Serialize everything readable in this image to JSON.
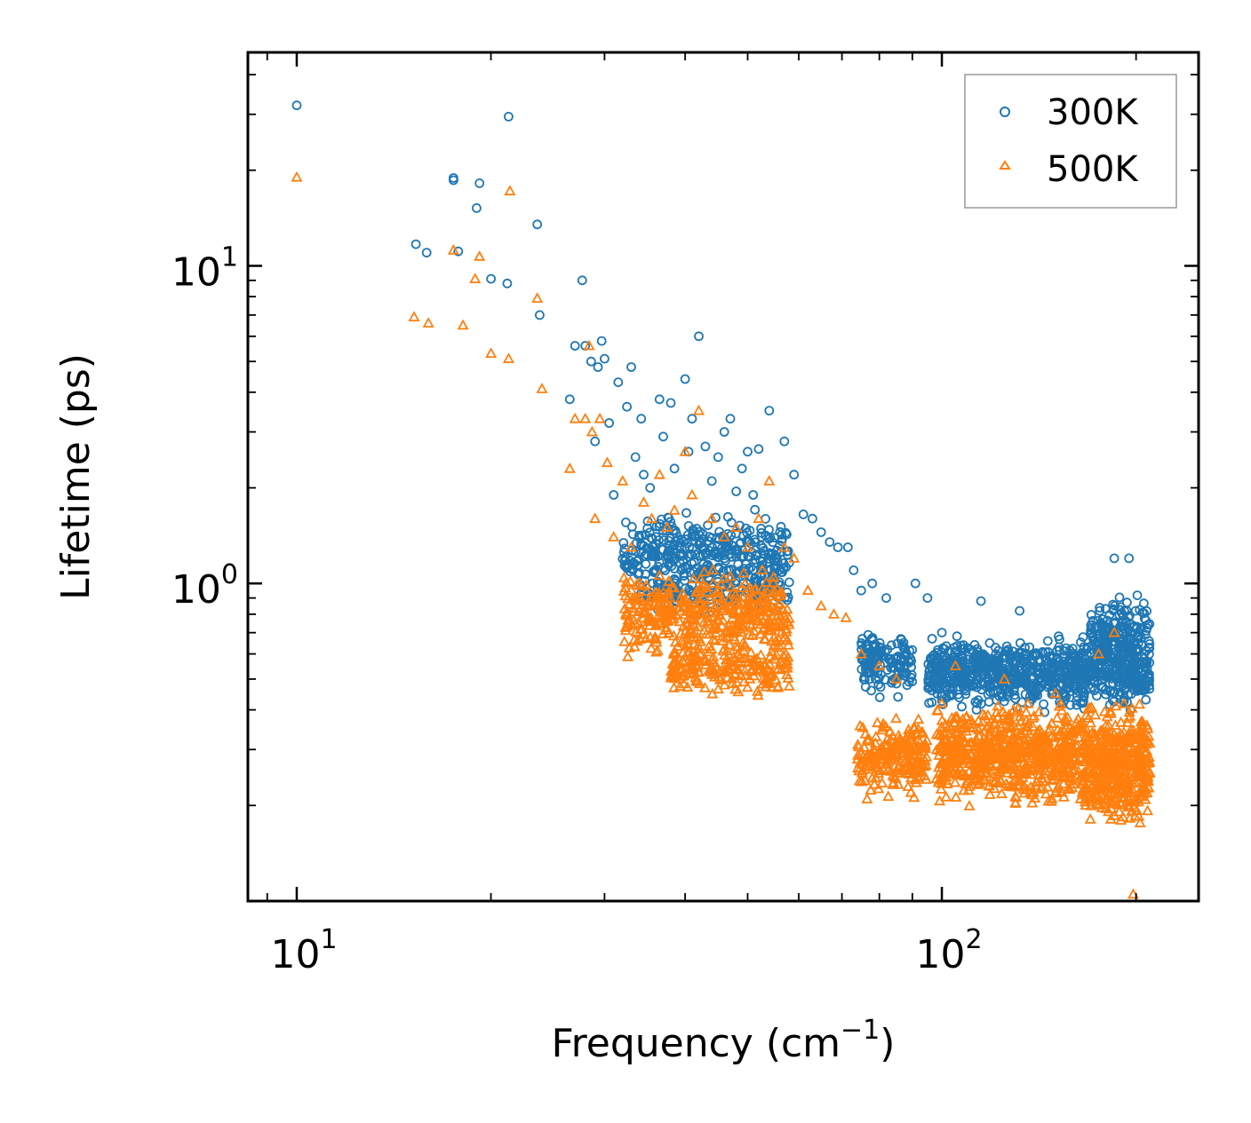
{
  "chart_data": {
    "type": "scatter",
    "title": "",
    "xlabel": "Frequency (cm",
    "xlabel_sup": "−1",
    "xlabel_suffix": ")",
    "ylabel": "Lifetime (ps)",
    "xscale": "log",
    "yscale": "log",
    "xlim": [
      8.4,
      250
    ],
    "ylim": [
      0.1,
      47
    ],
    "x_ticks": [
      {
        "base": "10",
        "exp": "1",
        "value": 10
      },
      {
        "base": "10",
        "exp": "2",
        "value": 100
      }
    ],
    "y_ticks": [
      {
        "base": "10",
        "exp": "0",
        "value": 1
      },
      {
        "base": "10",
        "exp": "1",
        "value": 10
      }
    ],
    "legend_position": "top-right",
    "series": [
      {
        "name": "300K",
        "marker": "circle",
        "color": "#1f77b4",
        "points": [
          [
            10.0,
            32.0
          ],
          [
            15.3,
            11.7
          ],
          [
            15.9,
            11.0
          ],
          [
            17.5,
            18.9
          ],
          [
            17.5,
            18.6
          ],
          [
            17.8,
            11.1
          ],
          [
            19.0,
            15.2
          ],
          [
            19.2,
            18.2
          ],
          [
            20.0,
            9.1
          ],
          [
            21.2,
            8.8
          ],
          [
            21.3,
            29.5
          ],
          [
            23.6,
            13.5
          ],
          [
            23.8,
            7.0
          ],
          [
            26.5,
            3.8
          ],
          [
            27.0,
            5.6
          ],
          [
            27.7,
            9.0
          ],
          [
            28.0,
            5.6
          ],
          [
            28.6,
            5.0
          ],
          [
            29.0,
            2.8
          ],
          [
            29.3,
            4.8
          ],
          [
            29.7,
            5.8
          ],
          [
            30.0,
            5.1
          ],
          [
            30.5,
            3.2
          ],
          [
            31.0,
            1.9
          ],
          [
            31.5,
            4.3
          ],
          [
            32.5,
            3.6
          ],
          [
            33.0,
            4.8
          ],
          [
            33.5,
            2.5
          ],
          [
            34.2,
            3.3
          ],
          [
            34.5,
            2.2
          ],
          [
            35.3,
            2.0
          ],
          [
            36.5,
            3.8
          ],
          [
            37.0,
            2.9
          ],
          [
            38.0,
            3.7
          ],
          [
            38.5,
            2.3
          ],
          [
            40.0,
            4.4
          ],
          [
            40.5,
            2.6
          ],
          [
            41.0,
            3.3
          ],
          [
            42.0,
            6.0
          ],
          [
            43.0,
            2.7
          ],
          [
            44.0,
            2.1
          ],
          [
            45.0,
            2.5
          ],
          [
            46.0,
            3.0
          ],
          [
            47.0,
            3.3
          ],
          [
            48.0,
            1.95
          ],
          [
            49.0,
            2.3
          ],
          [
            50.0,
            2.6
          ],
          [
            51.0,
            1.9
          ],
          [
            52.0,
            2.65
          ],
          [
            54.0,
            3.5
          ],
          [
            57.0,
            2.8
          ],
          [
            59.0,
            2.2
          ],
          [
            61.0,
            1.65
          ],
          [
            63.0,
            1.6
          ],
          [
            65.0,
            1.45
          ],
          [
            67.0,
            1.35
          ],
          [
            69.0,
            1.3
          ],
          [
            71.5,
            1.3
          ],
          [
            73.0,
            1.1
          ],
          [
            75.0,
            0.95
          ],
          [
            78.0,
            1.0
          ],
          [
            82.0,
            0.9
          ],
          [
            91.0,
            1.0
          ],
          [
            95.0,
            0.9
          ],
          [
            100.0,
            0.7
          ],
          [
            115.0,
            0.88
          ],
          [
            132.0,
            0.82
          ],
          [
            185.0,
            1.2
          ],
          [
            195.0,
            1.2
          ],
          [
            200.0,
            0.72
          ]
        ]
      },
      {
        "name": "500K",
        "marker": "triangle",
        "color": "#ff7f0e",
        "points": [
          [
            10.0,
            19.0
          ],
          [
            15.2,
            6.9
          ],
          [
            16.0,
            6.6
          ],
          [
            17.5,
            11.2
          ],
          [
            18.1,
            6.5
          ],
          [
            18.9,
            9.1
          ],
          [
            19.2,
            10.7
          ],
          [
            20.0,
            5.3
          ],
          [
            21.3,
            5.1
          ],
          [
            21.4,
            17.2
          ],
          [
            23.6,
            7.9
          ],
          [
            24.0,
            4.1
          ],
          [
            26.5,
            2.3
          ],
          [
            27.0,
            3.3
          ],
          [
            28.0,
            3.3
          ],
          [
            28.4,
            5.6
          ],
          [
            28.7,
            3.0
          ],
          [
            29.0,
            1.6
          ],
          [
            29.5,
            3.3
          ],
          [
            30.3,
            2.4
          ],
          [
            31.0,
            1.4
          ],
          [
            32.0,
            2.1
          ],
          [
            33.0,
            1.3
          ],
          [
            34.5,
            1.8
          ],
          [
            35.5,
            1.6
          ],
          [
            36.5,
            2.2
          ],
          [
            37.5,
            1.5
          ],
          [
            38.5,
            1.7
          ],
          [
            40.0,
            2.6
          ],
          [
            41.0,
            1.9
          ],
          [
            42.0,
            3.5
          ],
          [
            44.0,
            1.6
          ],
          [
            46.0,
            1.4
          ],
          [
            48.0,
            1.5
          ],
          [
            50.0,
            1.3
          ],
          [
            52.0,
            1.6
          ],
          [
            54.0,
            2.1
          ],
          [
            57.0,
            1.3
          ],
          [
            59.0,
            1.2
          ],
          [
            62.0,
            0.95
          ],
          [
            65.0,
            0.85
          ],
          [
            68.0,
            0.8
          ],
          [
            71.0,
            0.78
          ],
          [
            75.0,
            0.6
          ],
          [
            80.0,
            0.55
          ],
          [
            85.0,
            0.5
          ],
          [
            105.0,
            0.55
          ],
          [
            125.0,
            0.5
          ],
          [
            150.0,
            0.45
          ],
          [
            175.0,
            0.6
          ],
          [
            185.0,
            0.7
          ],
          [
            198.0,
            0.105
          ]
        ]
      }
    ],
    "dense_clusters": [
      {
        "series": 0,
        "x": [
          32,
          58
        ],
        "y": [
          0.85,
          1.8
        ],
        "count": 360
      },
      {
        "series": 0,
        "x": [
          34,
          58
        ],
        "y": [
          0.75,
          1.2
        ],
        "count": 140
      },
      {
        "series": 0,
        "x": [
          75,
          90
        ],
        "y": [
          0.42,
          0.75
        ],
        "count": 140
      },
      {
        "series": 0,
        "x": [
          95,
          210
        ],
        "y": [
          0.38,
          0.72
        ],
        "count": 900
      },
      {
        "series": 0,
        "x": [
          170,
          210
        ],
        "y": [
          0.5,
          0.95
        ],
        "count": 180
      },
      {
        "series": 1,
        "x": [
          32,
          58
        ],
        "y": [
          0.55,
          1.15
        ],
        "count": 420
      },
      {
        "series": 1,
        "x": [
          38,
          58
        ],
        "y": [
          0.42,
          0.7
        ],
        "count": 200
      },
      {
        "series": 1,
        "x": [
          74,
          95
        ],
        "y": [
          0.2,
          0.4
        ],
        "count": 220
      },
      {
        "series": 1,
        "x": [
          98,
          210
        ],
        "y": [
          0.19,
          0.45
        ],
        "count": 1000
      },
      {
        "series": 1,
        "x": [
          165,
          210
        ],
        "y": [
          0.16,
          0.32
        ],
        "count": 180
      }
    ]
  }
}
